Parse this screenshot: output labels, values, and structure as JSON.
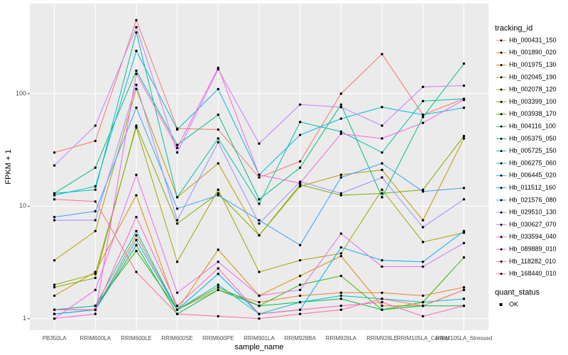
{
  "chart_data": {
    "type": "line",
    "log_y": true,
    "grid": true,
    "x_label": "sample_name",
    "y_label": "FPKM + 1",
    "categories": [
      "PB350LA",
      "RRIM600LA",
      "RRIM600LE",
      "RRIM600SE",
      "RRIM600PE",
      "RRIM901LA",
      "RRIM928BA",
      "RRIM928LA",
      "RRIM928LE",
      "RRIM105LA_Control",
      "RRIM105LA_Stressed"
    ],
    "ylim": [
      0.79,
      633
    ],
    "yticks": [
      1,
      10,
      100
    ],
    "legend_title": "tracking_id",
    "series": [
      {
        "name": "Hb_000431_150",
        "color": "#F8766D",
        "values": [
          30,
          38,
          450,
          49,
          48,
          18,
          25,
          100,
          225,
          65,
          90
        ]
      },
      {
        "name": "Hb_001890_020",
        "color": "#EA8331",
        "values": [
          1.2,
          1.2,
          5.5,
          1.2,
          1.8,
          1.4,
          1.6,
          1.7,
          1.7,
          1.6,
          1.9
        ]
      },
      {
        "name": "Hb_001975_130",
        "color": "#D89000",
        "values": [
          1.6,
          2.6,
          12.5,
          1.2,
          4.1,
          1.6,
          2.4,
          3.6,
          1.3,
          1.3,
          1.8
        ]
      },
      {
        "name": "Hb_002045_190",
        "color": "#C09B00",
        "values": [
          3.3,
          6,
          110,
          12,
          24,
          5.5,
          15,
          19,
          21,
          7.5,
          40
        ]
      },
      {
        "name": "Hb_002078_120",
        "color": "#A3A500",
        "values": [
          2,
          2.5,
          50,
          3.2,
          14,
          2.6,
          3.3,
          3.8,
          14,
          4.8,
          5.8
        ]
      },
      {
        "name": "Hb_003399_100",
        "color": "#7CAE00",
        "values": [
          1.9,
          2.3,
          52,
          7,
          13,
          5.5,
          15.5,
          12.5,
          13,
          14,
          42
        ]
      },
      {
        "name": "Hb_003938_170",
        "color": "#39B600",
        "values": [
          1.2,
          1.3,
          4,
          1.2,
          1.9,
          1.3,
          2,
          2.4,
          1.2,
          1.4,
          3.5
        ]
      },
      {
        "name": "Hb_004116_100",
        "color": "#00BB4E",
        "values": [
          1.1,
          1.2,
          4.5,
          1.1,
          1.8,
          1.3,
          1.4,
          1.5,
          1.2,
          1.3,
          1.3
        ]
      },
      {
        "name": "Hb_005375_050",
        "color": "#00BF7D",
        "values": [
          13,
          22,
          160,
          35,
          65,
          11.5,
          22,
          80,
          12,
          62,
          185
        ]
      },
      {
        "name": "Hb_005725_150",
        "color": "#00C1A3",
        "values": [
          13,
          14,
          350,
          12,
          40,
          10.5,
          56,
          46,
          30,
          86,
          90
        ]
      },
      {
        "name": "Hb_006275_060",
        "color": "#00BFC4",
        "values": [
          1.2,
          1.3,
          6,
          1.2,
          2,
          1.1,
          1.4,
          1.6,
          1.5,
          1.4,
          1.5
        ]
      },
      {
        "name": "Hb_006445_020",
        "color": "#00BAE0",
        "values": [
          12.5,
          15,
          240,
          48,
          110,
          19,
          43,
          60,
          76,
          65,
          75
        ]
      },
      {
        "name": "Hb_011512_160",
        "color": "#00B0F6",
        "values": [
          1.1,
          1.2,
          5,
          1.2,
          2.5,
          1.1,
          1.2,
          4.3,
          3.3,
          3.2,
          6
        ]
      },
      {
        "name": "Hb_021576_080",
        "color": "#35A2FF",
        "values": [
          8,
          9,
          75,
          9.5,
          12.5,
          7.5,
          4.5,
          18,
          24,
          13.5,
          14.5
        ]
      },
      {
        "name": "Hb_029510_130",
        "color": "#9590FF",
        "values": [
          7.5,
          7.5,
          120,
          7.5,
          37,
          7,
          16.5,
          13,
          18,
          6.5,
          11.5
        ]
      },
      {
        "name": "Hb_030627_070",
        "color": "#C77CFF",
        "values": [
          23,
          52,
          390,
          30,
          165,
          36,
          80,
          76,
          52,
          115,
          118
        ]
      },
      {
        "name": "Hb_033594_040",
        "color": "#E76BF3",
        "values": [
          1,
          1.8,
          19,
          1.7,
          3.2,
          1.6,
          1.8,
          5.7,
          2.9,
          2.9,
          4.7
        ]
      },
      {
        "name": "Hb_089889_010",
        "color": "#FA62DB",
        "values": [
          1,
          1.1,
          150,
          33,
          170,
          19,
          16,
          44,
          40,
          55,
          88
        ]
      },
      {
        "name": "Hb_118282_010",
        "color": "#FF62BC",
        "values": [
          1.2,
          1.2,
          8,
          1.3,
          2.8,
          1.1,
          1.2,
          1.3,
          1.4,
          1.05,
          1.3
        ]
      },
      {
        "name": "Hb_168440_010",
        "color": "#FF6C91",
        "values": [
          11.5,
          11,
          2.6,
          1.1,
          1.05,
          1,
          1.1,
          1.2,
          1.5,
          1.3,
          1.8
        ]
      }
    ],
    "shape_legend": {
      "title": "quant_status",
      "entries": [
        "OK"
      ]
    }
  }
}
